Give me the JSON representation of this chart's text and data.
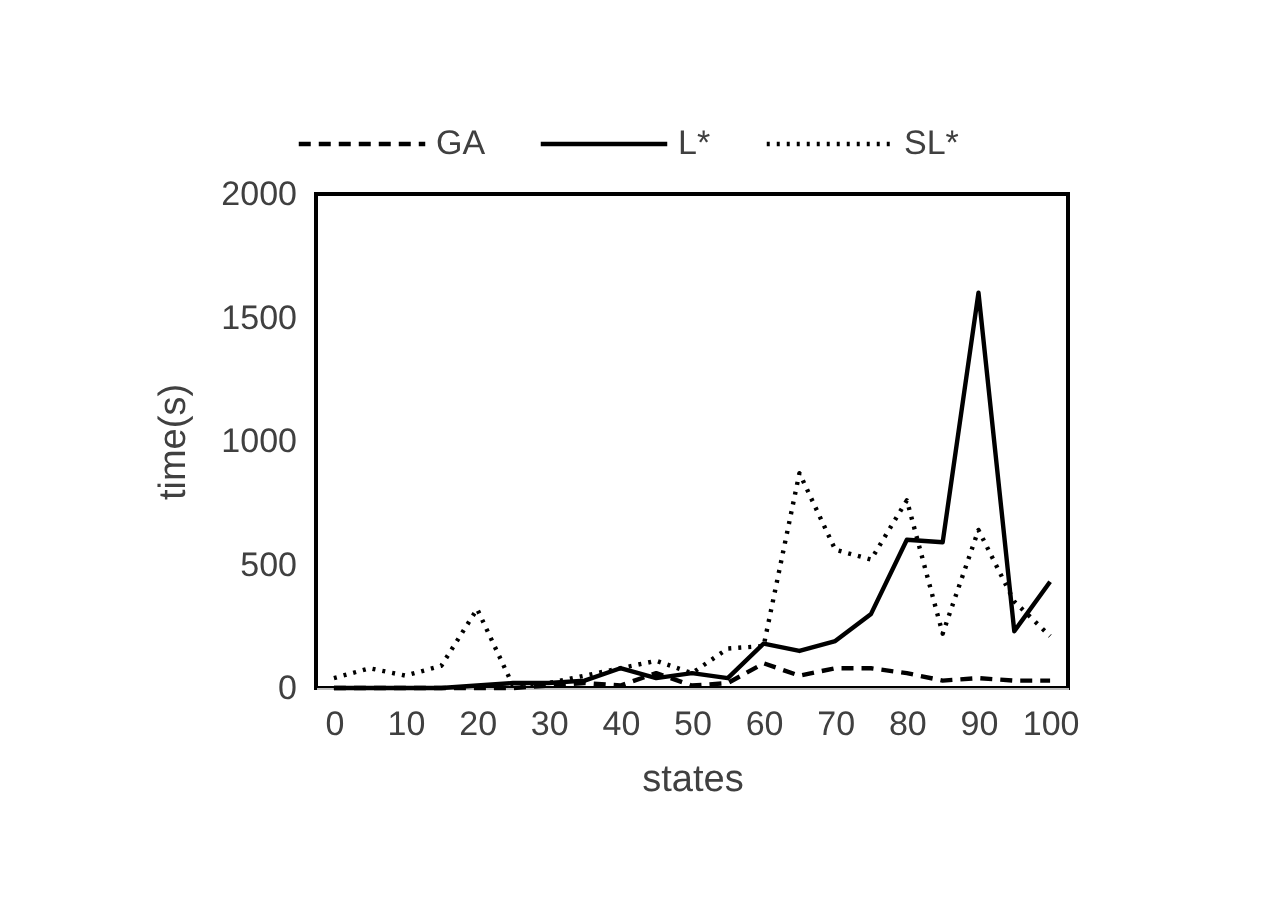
{
  "chart_data": {
    "type": "line",
    "xlabel": "states",
    "ylabel": "time(s)",
    "x": [
      0,
      5,
      10,
      15,
      20,
      25,
      30,
      35,
      40,
      45,
      50,
      55,
      60,
      65,
      70,
      75,
      80,
      85,
      90,
      95,
      100
    ],
    "xlim": [
      -2.5,
      102.5
    ],
    "xticks": [
      0,
      10,
      20,
      30,
      40,
      50,
      60,
      70,
      80,
      90,
      100
    ],
    "ylim": [
      0,
      2000
    ],
    "yticks": [
      0,
      500,
      1000,
      1500,
      2000
    ],
    "grid": false,
    "legend": "top",
    "marker": "none",
    "series": [
      {
        "name": "GA",
        "color": "#000000",
        "line_style": "dashed",
        "values": [
          0,
          0,
          0,
          0,
          0,
          0,
          10,
          20,
          10,
          60,
          10,
          20,
          100,
          50,
          80,
          80,
          60,
          30,
          40,
          30,
          30
        ]
      },
      {
        "name": "L*",
        "color": "#000000",
        "line_style": "solid",
        "values": [
          0,
          0,
          0,
          0,
          10,
          20,
          20,
          30,
          80,
          40,
          60,
          40,
          180,
          150,
          190,
          300,
          600,
          590,
          1600,
          230,
          430
        ]
      },
      {
        "name": "SL*",
        "color": "#000000",
        "line_style": "dotted",
        "values": [
          40,
          80,
          50,
          90,
          320,
          10,
          20,
          50,
          80,
          110,
          60,
          160,
          170,
          870,
          560,
          520,
          760,
          220,
          640,
          350,
          210
        ]
      }
    ]
  }
}
